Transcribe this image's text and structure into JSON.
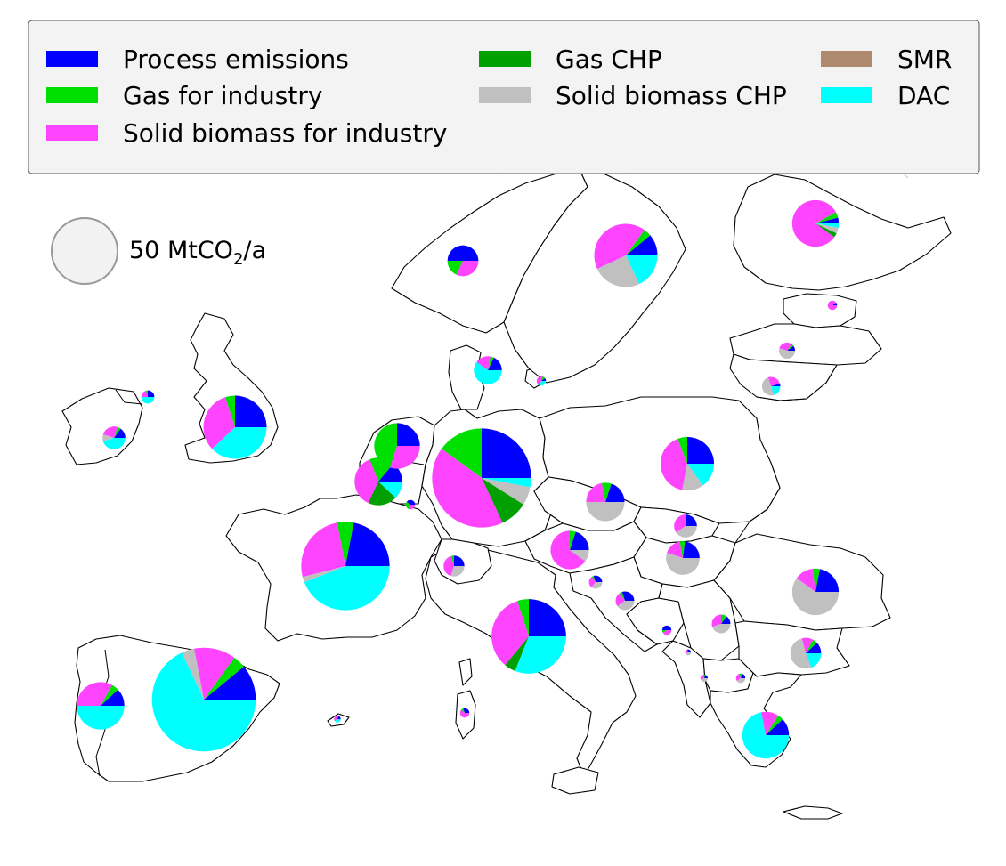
{
  "legend": {
    "items": [
      {
        "label": "Process emissions",
        "color": "#0000ff"
      },
      {
        "label": "Gas for industry",
        "color": "#00e000"
      },
      {
        "label": "Solid biomass for industry",
        "color": "#ff44ff"
      },
      {
        "label": "Gas CHP",
        "color": "#00a000"
      },
      {
        "label": "Solid biomass CHP",
        "color": "#c0c0c0"
      },
      {
        "label": "SMR",
        "color": "#b08a6e"
      },
      {
        "label": "DAC",
        "color": "#00ffff"
      }
    ]
  },
  "size_reference": {
    "prefix": "50 MtCO",
    "subscript": "2",
    "suffix": "/a",
    "value": 50,
    "color": "#f2f2f2"
  },
  "chart_data": {
    "type": "pie",
    "title": "",
    "unit": "MtCO2/a",
    "categories": [
      "Process emissions",
      "Gas for industry",
      "Solid biomass for industry",
      "Gas CHP",
      "Solid biomass CHP",
      "SMR",
      "DAC"
    ],
    "regions": [
      {
        "id": "spain",
        "total": 124,
        "shares": {
          "Process emissions": 0.11,
          "Gas for industry": 0.04,
          "Solid biomass for industry": 0.13,
          "Gas CHP": 0.0,
          "Solid biomass CHP": 0.04,
          "SMR": 0.0,
          "DAC": 0.68
        }
      },
      {
        "id": "portugal",
        "total": 26,
        "shares": {
          "Process emissions": 0.12,
          "Gas for industry": 0.05,
          "Solid biomass for industry": 0.33,
          "Gas CHP": 0.0,
          "Solid biomass CHP": 0.0,
          "SMR": 0.0,
          "DAC": 0.5
        }
      },
      {
        "id": "france",
        "total": 90,
        "shares": {
          "Process emissions": 0.22,
          "Gas for industry": 0.06,
          "Solid biomass for industry": 0.26,
          "Gas CHP": 0.0,
          "Solid biomass CHP": 0.02,
          "SMR": 0.0,
          "DAC": 0.44
        }
      },
      {
        "id": "italy",
        "total": 64,
        "shares": {
          "Process emissions": 0.25,
          "Gas for industry": 0.05,
          "Solid biomass for industry": 0.34,
          "Gas CHP": 0.05,
          "Solid biomass CHP": 0.0,
          "SMR": 0.0,
          "DAC": 0.31
        }
      },
      {
        "id": "germany",
        "total": 113,
        "shares": {
          "Process emissions": 0.25,
          "Gas for industry": 0.15,
          "Solid biomass for industry": 0.42,
          "Gas CHP": 0.09,
          "Solid biomass CHP": 0.06,
          "SMR": 0.0,
          "DAC": 0.03
        }
      },
      {
        "id": "united-kingdom",
        "total": 46,
        "shares": {
          "Process emissions": 0.25,
          "Gas for industry": 0.05,
          "Solid biomass for industry": 0.32,
          "Gas CHP": 0.0,
          "Solid biomass CHP": 0.0,
          "SMR": 0.0,
          "DAC": 0.38
        }
      },
      {
        "id": "poland",
        "total": 33,
        "shares": {
          "Process emissions": 0.25,
          "Gas for industry": 0.06,
          "Solid biomass for industry": 0.41,
          "Gas CHP": 0.0,
          "Solid biomass CHP": 0.13,
          "SMR": 0.0,
          "DAC": 0.15
        }
      },
      {
        "id": "sweden",
        "total": 46,
        "shares": {
          "Process emissions": 0.11,
          "Gas for industry": 0.04,
          "Solid biomass for industry": 0.42,
          "Gas CHP": 0.0,
          "Solid biomass CHP": 0.25,
          "SMR": 0.0,
          "DAC": 0.18
        }
      },
      {
        "id": "romania",
        "total": 25,
        "shares": {
          "Process emissions": 0.22,
          "Gas for industry": 0.05,
          "Solid biomass for industry": 0.13,
          "Gas CHP": 0.0,
          "Solid biomass CHP": 0.6,
          "SMR": 0.0,
          "DAC": 0.0
        }
      },
      {
        "id": "greece",
        "total": 25,
        "shares": {
          "Process emissions": 0.12,
          "Gas for industry": 0.04,
          "Solid biomass for industry": 0.12,
          "Gas CHP": 0.0,
          "Solid biomass CHP": 0.0,
          "SMR": 0.0,
          "DAC": 0.72
        }
      },
      {
        "id": "netherlands",
        "total": 24,
        "shares": {
          "Process emissions": 0.25,
          "Gas for industry": 0.45,
          "Solid biomass for industry": 0.3,
          "Gas CHP": 0.0,
          "Solid biomass CHP": 0.0,
          "SMR": 0.0,
          "DAC": 0.0
        }
      },
      {
        "id": "belgium",
        "total": 26,
        "shares": {
          "Process emissions": 0.14,
          "Gas for industry": 0.17,
          "Solid biomass for industry": 0.37,
          "Gas CHP": 0.2,
          "Solid biomass CHP": 0.0,
          "SMR": 0.0,
          "DAC": 0.12
        }
      },
      {
        "id": "finland",
        "total": 25,
        "shares": {
          "Process emissions": 0.04,
          "Gas for industry": 0.04,
          "Solid biomass for industry": 0.82,
          "Gas CHP": 0.03,
          "Solid biomass CHP": 0.04,
          "SMR": 0.0,
          "DAC": 0.03
        }
      },
      {
        "id": "czechia",
        "total": 17,
        "shares": {
          "Process emissions": 0.2,
          "Gas for industry": 0.08,
          "Solid biomass for industry": 0.22,
          "Gas CHP": 0.0,
          "Solid biomass CHP": 0.5,
          "SMR": 0.0,
          "DAC": 0.0
        }
      },
      {
        "id": "austria",
        "total": 17,
        "shares": {
          "Process emissions": 0.2,
          "Gas for industry": 0.05,
          "Solid biomass for industry": 0.65,
          "Gas CHP": 0.0,
          "Solid biomass CHP": 0.1,
          "SMR": 0.0,
          "DAC": 0.0
        }
      },
      {
        "id": "hungary",
        "total": 13,
        "shares": {
          "Process emissions": 0.23,
          "Gas for industry": 0.05,
          "Solid biomass for industry": 0.17,
          "Gas CHP": 0.0,
          "Solid biomass CHP": 0.55,
          "SMR": 0.0,
          "DAC": 0.0
        }
      },
      {
        "id": "bulgaria",
        "total": 11,
        "shares": {
          "Process emissions": 0.12,
          "Gas for industry": 0.05,
          "Solid biomass for industry": 0.12,
          "Gas CHP": 0.0,
          "Solid biomass CHP": 0.52,
          "SMR": 0.0,
          "DAC": 0.19
        }
      },
      {
        "id": "norway",
        "total": 11,
        "shares": {
          "Process emissions": 0.5,
          "Gas for industry": 0.18,
          "Solid biomass for industry": 0.32,
          "Gas CHP": 0.0,
          "Solid biomass CHP": 0.0,
          "SMR": 0.0,
          "DAC": 0.0
        }
      },
      {
        "id": "denmark",
        "total": 9,
        "shares": {
          "Process emissions": 0.18,
          "Gas for industry": 0.04,
          "Solid biomass for industry": 0.18,
          "Gas CHP": 0.0,
          "Solid biomass CHP": 0.0,
          "SMR": 0.0,
          "DAC": 0.6
        }
      },
      {
        "id": "ireland",
        "total": 6,
        "shares": {
          "Process emissions": 0.15,
          "Gas for industry": 0.05,
          "Solid biomass for industry": 0.25,
          "Gas CHP": 0.0,
          "Solid biomass CHP": 0.1,
          "SMR": 0.0,
          "DAC": 0.45
        }
      },
      {
        "id": "slovakia",
        "total": 6,
        "shares": {
          "Process emissions": 0.25,
          "Gas for industry": 0.0,
          "Solid biomass for industry": 0.35,
          "Gas CHP": 0.0,
          "Solid biomass CHP": 0.4,
          "SMR": 0.0,
          "DAC": 0.0
        }
      },
      {
        "id": "switzerland",
        "total": 5,
        "shares": {
          "Process emissions": 0.25,
          "Gas for industry": 0.05,
          "Solid biomass for industry": 0.4,
          "Gas CHP": 0.0,
          "Solid biomass CHP": 0.3,
          "SMR": 0.0,
          "DAC": 0.0
        }
      },
      {
        "id": "serbia",
        "total": 4,
        "shares": {
          "Process emissions": 0.15,
          "Gas for industry": 0.1,
          "Solid biomass for industry": 0.3,
          "Gas CHP": 0.0,
          "Solid biomass CHP": 0.45,
          "SMR": 0.0,
          "DAC": 0.0
        }
      },
      {
        "id": "croatia",
        "total": 4,
        "shares": {
          "Process emissions": 0.3,
          "Gas for industry": 0.05,
          "Solid biomass for industry": 0.25,
          "Gas CHP": 0.0,
          "Solid biomass CHP": 0.4,
          "SMR": 0.0,
          "DAC": 0.0
        }
      },
      {
        "id": "lithuania",
        "total": 4,
        "shares": {
          "Process emissions": 0.05,
          "Gas for industry": 0.0,
          "Solid biomass for industry": 0.25,
          "Gas CHP": 0.0,
          "Solid biomass CHP": 0.5,
          "SMR": 0.0,
          "DAC": 0.2
        }
      },
      {
        "id": "latvia",
        "total": 3,
        "shares": {
          "Process emissions": 0.1,
          "Gas for industry": 0.05,
          "Solid biomass for industry": 0.3,
          "Gas CHP": 0.0,
          "Solid biomass CHP": 0.55,
          "SMR": 0.0,
          "DAC": 0.0
        }
      },
      {
        "id": "slovenia",
        "total": 2,
        "shares": {
          "Process emissions": 0.3,
          "Gas for industry": 0.05,
          "Solid biomass for industry": 0.3,
          "Gas CHP": 0.0,
          "Solid biomass CHP": 0.35,
          "SMR": 0.0,
          "DAC": 0.0
        }
      },
      {
        "id": "northern-ireland",
        "total": 2,
        "shares": {
          "Process emissions": 0.25,
          "Gas for industry": 0.05,
          "Solid biomass for industry": 0.2,
          "Gas CHP": 0.0,
          "Solid biomass CHP": 0.0,
          "SMR": 0.0,
          "DAC": 0.5
        }
      },
      {
        "id": "bosnia-herzegovina",
        "total": 1,
        "shares": {
          "Process emissions": 0.5,
          "Gas for industry": 0.1,
          "Solid biomass for industry": 0.4,
          "Gas CHP": 0.0,
          "Solid biomass CHP": 0.0,
          "SMR": 0.0,
          "DAC": 0.0
        }
      },
      {
        "id": "luxembourg",
        "total": 1,
        "shares": {
          "Process emissions": 0.4,
          "Gas for industry": 0.3,
          "Solid biomass for industry": 0.3,
          "Gas CHP": 0.0,
          "Solid biomass CHP": 0.0,
          "SMR": 0.0,
          "DAC": 0.0
        }
      },
      {
        "id": "estonia",
        "total": 1,
        "shares": {
          "Process emissions": 0.1,
          "Gas for industry": 0.0,
          "Solid biomass for industry": 0.9,
          "Gas CHP": 0.0,
          "Solid biomass CHP": 0.0,
          "SMR": 0.0,
          "DAC": 0.0
        }
      },
      {
        "id": "sardinia",
        "total": 1,
        "shares": {
          "Process emissions": 0.3,
          "Gas for industry": 0.1,
          "Solid biomass for industry": 0.6,
          "Gas CHP": 0.0,
          "Solid biomass CHP": 0.0,
          "SMR": 0.0,
          "DAC": 0.0
        }
      },
      {
        "id": "zealand",
        "total": 1,
        "shares": {
          "Process emissions": 0.1,
          "Gas for industry": 0.1,
          "Solid biomass for industry": 0.5,
          "Gas CHP": 0.0,
          "Solid biomass CHP": 0.0,
          "SMR": 0.0,
          "DAC": 0.3
        }
      },
      {
        "id": "north-macedonia",
        "total": 1,
        "shares": {
          "Process emissions": 0.2,
          "Gas for industry": 0.1,
          "Solid biomass for industry": 0.3,
          "Gas CHP": 0.0,
          "Solid biomass CHP": 0.4,
          "SMR": 0.0,
          "DAC": 0.0
        }
      },
      {
        "id": "albania",
        "total": 0.6,
        "shares": {
          "Process emissions": 0.2,
          "Gas for industry": 0.1,
          "Solid biomass for industry": 0.3,
          "Gas CHP": 0.0,
          "Solid biomass CHP": 0.4,
          "SMR": 0.0,
          "DAC": 0.0
        }
      },
      {
        "id": "montenegro",
        "total": 0.4,
        "shares": {
          "Process emissions": 0.3,
          "Gas for industry": 0.0,
          "Solid biomass for industry": 0.3,
          "Gas CHP": 0.0,
          "Solid biomass CHP": 0.4,
          "SMR": 0.0,
          "DAC": 0.0
        }
      },
      {
        "id": "balearic-islands",
        "total": 0.5,
        "shares": {
          "Process emissions": 0.2,
          "Gas for industry": 0.1,
          "Solid biomass for industry": 0.3,
          "Gas CHP": 0.0,
          "Solid biomass CHP": 0.0,
          "SMR": 0.0,
          "DAC": 0.4
        }
      }
    ]
  }
}
